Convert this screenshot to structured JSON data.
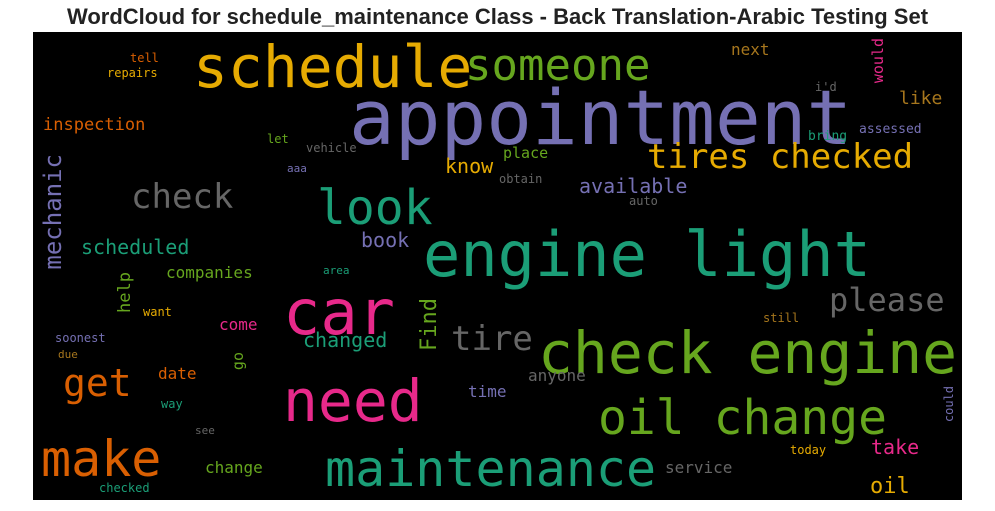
{
  "title": "WordCloud for schedule_maintenance Class - Back Translation-Arabic Testing Set",
  "colors": {
    "background": "#000000",
    "teal": "#1b9e77",
    "orange": "#d95f02",
    "purple": "#7570b3",
    "pink": "#e7298a",
    "green": "#66a61e",
    "yellow": "#e6ab02",
    "brown": "#a6761d",
    "gray": "#666666"
  },
  "words": [
    {
      "text": "appointment",
      "color": "#7570b3",
      "weight": 76
    },
    {
      "text": "schedule",
      "color": "#e6ab02",
      "weight": 58
    },
    {
      "text": "someone",
      "color": "#66a61e",
      "weight": 44
    },
    {
      "text": "engine light",
      "color": "#1b9e77",
      "weight": 62
    },
    {
      "text": "car",
      "color": "#e7298a",
      "weight": 62
    },
    {
      "text": "check engine",
      "color": "#66a61e",
      "weight": 58
    },
    {
      "text": "need",
      "color": "#e7298a",
      "weight": 58
    },
    {
      "text": "oil change",
      "color": "#66a61e",
      "weight": 48
    },
    {
      "text": "maintenance",
      "color": "#1b9e77",
      "weight": 50
    },
    {
      "text": "make",
      "color": "#d95f02",
      "weight": 50
    },
    {
      "text": "look",
      "color": "#1b9e77",
      "weight": 48
    },
    {
      "text": "tires checked",
      "color": "#e6ab02",
      "weight": 34
    },
    {
      "text": "check",
      "color": "#666666",
      "weight": 34
    },
    {
      "text": "get",
      "color": "#d95f02",
      "weight": 38
    },
    {
      "text": "please",
      "color": "#666666",
      "weight": 32
    },
    {
      "text": "tire",
      "color": "#666666",
      "weight": 34
    },
    {
      "text": "mechanic",
      "color": "#7570b3",
      "weight": 24
    },
    {
      "text": "available",
      "color": "#7570b3",
      "weight": 20
    },
    {
      "text": "scheduled",
      "color": "#1b9e77",
      "weight": 20
    },
    {
      "text": "Find",
      "color": "#66a61e",
      "weight": 22
    },
    {
      "text": "changed",
      "color": "#1b9e77",
      "weight": 20
    },
    {
      "text": "know",
      "color": "#e6ab02",
      "weight": 20
    },
    {
      "text": "book",
      "color": "#7570b3",
      "weight": 20
    },
    {
      "text": "inspection",
      "color": "#d95f02",
      "weight": 17
    },
    {
      "text": "like",
      "color": "#a6761d",
      "weight": 18
    },
    {
      "text": "next",
      "color": "#a6761d",
      "weight": 16
    },
    {
      "text": "would",
      "color": "#e7298a",
      "weight": 15
    },
    {
      "text": "companies",
      "color": "#66a61e",
      "weight": 16
    },
    {
      "text": "help",
      "color": "#66a61e",
      "weight": 17
    },
    {
      "text": "come",
      "color": "#e7298a",
      "weight": 16
    },
    {
      "text": "date",
      "color": "#d95f02",
      "weight": 16
    },
    {
      "text": "go",
      "color": "#66a61e",
      "weight": 15
    },
    {
      "text": "take",
      "color": "#e7298a",
      "weight": 20
    },
    {
      "text": "oil",
      "color": "#e6ab02",
      "weight": 22
    },
    {
      "text": "change",
      "color": "#66a61e",
      "weight": 16
    },
    {
      "text": "service",
      "color": "#666666",
      "weight": 16
    },
    {
      "text": "time",
      "color": "#7570b3",
      "weight": 16
    },
    {
      "text": "anyone",
      "color": "#666666",
      "weight": 16
    },
    {
      "text": "place",
      "color": "#66a61e",
      "weight": 15
    },
    {
      "text": "obtain",
      "color": "#666666",
      "weight": 12
    },
    {
      "text": "auto",
      "color": "#666666",
      "weight": 12
    },
    {
      "text": "bring",
      "color": "#1b9e77",
      "weight": 13
    },
    {
      "text": "assessed",
      "color": "#7570b3",
      "weight": 13
    },
    {
      "text": "i'd",
      "color": "#666666",
      "weight": 12
    },
    {
      "text": "let",
      "color": "#66a61e",
      "weight": 12
    },
    {
      "text": "vehicle",
      "color": "#666666",
      "weight": 12
    },
    {
      "text": "aaa",
      "color": "#7570b3",
      "weight": 11
    },
    {
      "text": "tell",
      "color": "#d95f02",
      "weight": 12
    },
    {
      "text": "repairs",
      "color": "#e6ab02",
      "weight": 12
    },
    {
      "text": "area",
      "color": "#1b9e77",
      "weight": 11
    },
    {
      "text": "want",
      "color": "#e6ab02",
      "weight": 12
    },
    {
      "text": "soonest",
      "color": "#7570b3",
      "weight": 12
    },
    {
      "text": "due",
      "color": "#a6761d",
      "weight": 11
    },
    {
      "text": "way",
      "color": "#1b9e77",
      "weight": 12
    },
    {
      "text": "see",
      "color": "#666666",
      "weight": 11
    },
    {
      "text": "checked",
      "color": "#1b9e77",
      "weight": 12
    },
    {
      "text": "still",
      "color": "#a6761d",
      "weight": 12
    },
    {
      "text": "today",
      "color": "#e6ab02",
      "weight": 12
    },
    {
      "text": "could",
      "color": "#7570b3",
      "weight": 12
    }
  ]
}
